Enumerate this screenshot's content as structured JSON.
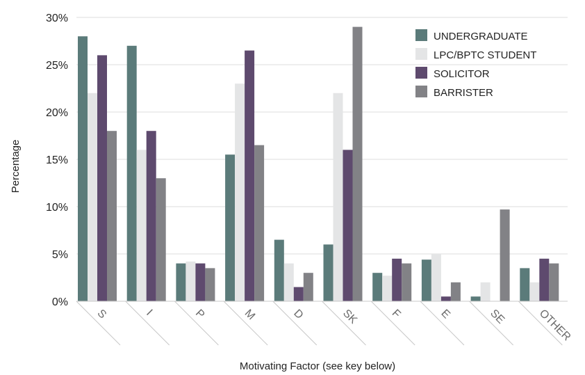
{
  "chart_data": {
    "type": "bar",
    "xlabel": "Motivating Factor (see key below)",
    "ylabel": "Percentage",
    "ylim": [
      0,
      30
    ],
    "y_ticks": [
      "0%",
      "5%",
      "10%",
      "15%",
      "20%",
      "25%",
      "30%"
    ],
    "y_tick_values": [
      0,
      5,
      10,
      15,
      20,
      25,
      30
    ],
    "grid": true,
    "legend_position": "top-right",
    "categories": [
      "S",
      "I",
      "P",
      "M",
      "D",
      "SK",
      "F",
      "E",
      "SE",
      "OTHER"
    ],
    "series": [
      {
        "name": "UNDERGRADUATE",
        "color": "#5b7b7a",
        "values": [
          28,
          27,
          4,
          15.5,
          6.5,
          6,
          3,
          4.4,
          0.5,
          3.5
        ]
      },
      {
        "name": "LPC/BPTC STUDENT",
        "color": "#e4e5e6",
        "values": [
          22,
          16,
          4.2,
          23,
          4,
          22,
          2.7,
          5,
          2,
          2
        ]
      },
      {
        "name": "SOLICITOR",
        "color": "#5e4a6e",
        "values": [
          26,
          18,
          4,
          26.5,
          1.5,
          16,
          4.5,
          0.5,
          0,
          4.5
        ]
      },
      {
        "name": "BARRISTER",
        "color": "#828286",
        "values": [
          18,
          13,
          3.5,
          16.5,
          3,
          29,
          4,
          2,
          9.7,
          4
        ]
      }
    ]
  }
}
